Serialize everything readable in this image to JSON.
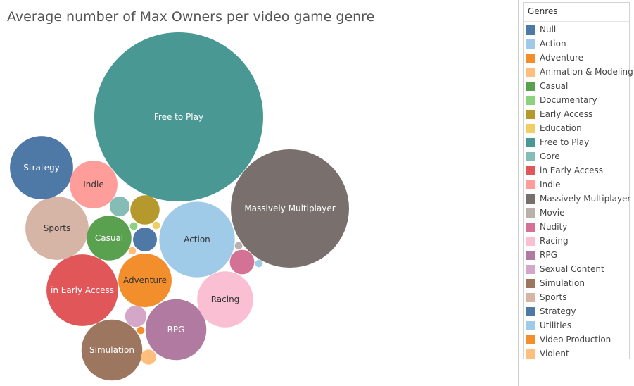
{
  "chart_data": {
    "type": "packed_bubble",
    "title": "Average number of Max Owners per video game genre",
    "legend": {
      "title": "Genres",
      "placement": "right",
      "entries": [
        {
          "name": "Null",
          "color": "#4e79a7"
        },
        {
          "name": "Action",
          "color": "#a0cbe8"
        },
        {
          "name": "Adventure",
          "color": "#f28e2b"
        },
        {
          "name": "Animation & Modeling",
          "color": "#ffbe7d"
        },
        {
          "name": "Casual",
          "color": "#59a14f"
        },
        {
          "name": "Documentary",
          "color": "#8cd17d"
        },
        {
          "name": "Early Access",
          "color": "#b6992d"
        },
        {
          "name": "Education",
          "color": "#f1ce63"
        },
        {
          "name": "Free to Play",
          "color": "#499894"
        },
        {
          "name": "Gore",
          "color": "#86bcb6"
        },
        {
          "name": "in Early Access",
          "color": "#e15759"
        },
        {
          "name": "Indie",
          "color": "#ff9d9a"
        },
        {
          "name": "Massively Multiplayer",
          "color": "#79706e"
        },
        {
          "name": "Movie",
          "color": "#bab0ac"
        },
        {
          "name": "Nudity",
          "color": "#d37295"
        },
        {
          "name": "Racing",
          "color": "#fabfd2"
        },
        {
          "name": "RPG",
          "color": "#b07aa1"
        },
        {
          "name": "Sexual Content",
          "color": "#d4a6c8"
        },
        {
          "name": "Simulation",
          "color": "#9d7660"
        },
        {
          "name": "Sports",
          "color": "#d7b5a6"
        },
        {
          "name": "Strategy",
          "color": "#4e79a7"
        },
        {
          "name": "Utilities",
          "color": "#a0cbe8"
        },
        {
          "name": "Video Production",
          "color": "#f28e2b"
        },
        {
          "name": "Violent",
          "color": "#ffbe7d"
        }
      ]
    },
    "bubbles": [
      {
        "genre": "Free to Play",
        "relative_size": 1.0,
        "label": "Free to Play",
        "color": "#499894",
        "text_color": "#ffffff"
      },
      {
        "genre": "Massively Multiplayer",
        "relative_size": 0.49,
        "label": "Massively Multiplayer",
        "color": "#79706e",
        "text_color": "#ffffff"
      },
      {
        "genre": "Action",
        "relative_size": 0.2,
        "label": "Action",
        "color": "#a0cbe8",
        "text_color": "#333333"
      },
      {
        "genre": "in Early Access",
        "relative_size": 0.18,
        "label": "in Early Access",
        "color": "#e15759",
        "text_color": "#ffffff"
      },
      {
        "genre": "Sports",
        "relative_size": 0.14,
        "label": "Sports",
        "color": "#d7b5a6",
        "text_color": "#333333"
      },
      {
        "genre": "Strategy",
        "relative_size": 0.14,
        "label": "Strategy",
        "color": "#4e79a7",
        "text_color": "#ffffff"
      },
      {
        "genre": "RPG",
        "relative_size": 0.13,
        "label": "RPG",
        "color": "#b07aa1",
        "text_color": "#ffffff"
      },
      {
        "genre": "Simulation",
        "relative_size": 0.13,
        "label": "Simulation",
        "color": "#9d7660",
        "text_color": "#ffffff"
      },
      {
        "genre": "Racing",
        "relative_size": 0.11,
        "label": "Racing",
        "color": "#fabfd2",
        "text_color": "#333333"
      },
      {
        "genre": "Adventure",
        "relative_size": 0.1,
        "label": "Adventure",
        "color": "#f28e2b",
        "text_color": "#333333"
      },
      {
        "genre": "Indie",
        "relative_size": 0.08,
        "label": "Indie",
        "color": "#ff9d9a",
        "text_color": "#333333"
      },
      {
        "genre": "Casual",
        "relative_size": 0.07,
        "label": "Casual",
        "color": "#59a14f",
        "text_color": "#ffffff"
      },
      {
        "genre": "Early Access",
        "relative_size": 0.03,
        "label": "",
        "color": "#b6992d",
        "text_color": "#ffffff"
      },
      {
        "genre": "Null",
        "relative_size": 0.02,
        "label": "",
        "color": "#4e79a7",
        "text_color": "#ffffff"
      },
      {
        "genre": "Nudity",
        "relative_size": 0.021,
        "label": "",
        "color": "#d37295",
        "text_color": "#ffffff"
      },
      {
        "genre": "Gore",
        "relative_size": 0.014,
        "label": "",
        "color": "#86bcb6",
        "text_color": "#ffffff"
      },
      {
        "genre": "Sexual Content",
        "relative_size": 0.016,
        "label": "",
        "color": "#d4a6c8",
        "text_color": "#ffffff"
      },
      {
        "genre": "Violent",
        "relative_size": 0.008,
        "label": "",
        "color": "#ffbe7d",
        "text_color": "#ffffff"
      },
      {
        "genre": "Education",
        "relative_size": 0.002,
        "label": "",
        "color": "#f1ce63",
        "text_color": "#ffffff"
      },
      {
        "genre": "Documentary",
        "relative_size": 0.002,
        "label": "",
        "color": "#8cd17d",
        "text_color": "#ffffff"
      },
      {
        "genre": "Movie",
        "relative_size": 0.002,
        "label": "",
        "color": "#bab0ac",
        "text_color": "#ffffff"
      },
      {
        "genre": "Utilities",
        "relative_size": 0.002,
        "label": "",
        "color": "#a0cbe8",
        "text_color": "#ffffff"
      },
      {
        "genre": "Video Production",
        "relative_size": 0.002,
        "label": "",
        "color": "#f28e2b",
        "text_color": "#ffffff"
      },
      {
        "genre": "Animation & Modeling",
        "relative_size": 0.002,
        "label": "",
        "color": "#ffbe7d",
        "text_color": "#ffffff"
      }
    ]
  }
}
